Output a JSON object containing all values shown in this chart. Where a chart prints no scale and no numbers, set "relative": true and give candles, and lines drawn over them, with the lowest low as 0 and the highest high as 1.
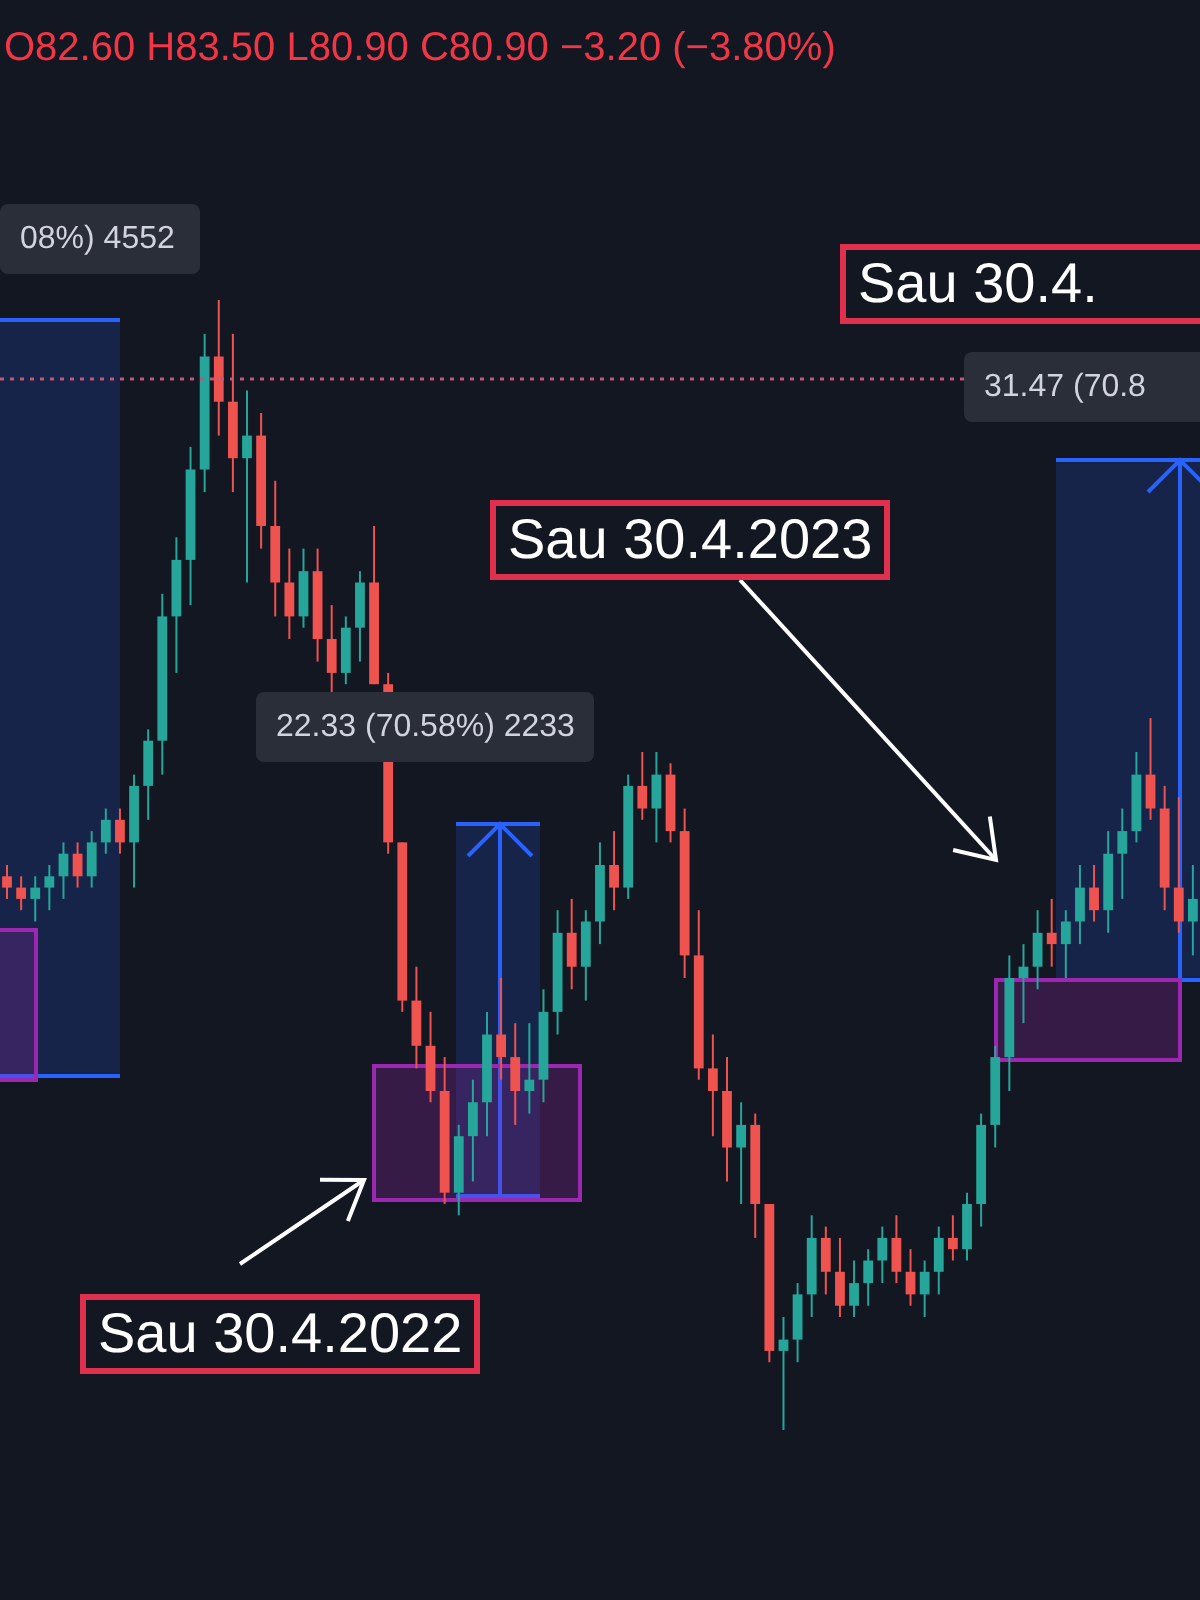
{
  "chart_data": {
    "type": "candlestick",
    "relative": true,
    "categories": [
      null,
      null,
      null,
      null,
      null,
      null,
      null,
      null,
      null,
      null,
      null,
      null,
      null,
      null,
      null,
      null,
      null,
      null,
      null,
      null,
      null,
      null,
      null,
      null,
      null,
      null,
      null,
      null,
      null,
      null,
      null,
      null,
      null,
      null,
      null,
      null,
      null,
      null,
      null,
      null,
      null,
      null,
      null,
      null,
      null,
      null,
      null,
      null,
      null,
      null,
      null,
      null,
      null,
      null,
      null,
      null,
      null,
      null,
      null,
      null,
      null,
      null,
      null,
      null,
      null,
      null,
      null,
      null,
      null,
      null,
      null,
      null,
      null,
      null,
      null,
      null,
      null,
      null,
      null,
      null,
      null,
      null,
      null,
      null,
      null
    ],
    "ohlc": [
      [
        0.49,
        0.5,
        0.47,
        0.48
      ],
      [
        0.48,
        0.49,
        0.46,
        0.47
      ],
      [
        0.47,
        0.49,
        0.45,
        0.48
      ],
      [
        0.48,
        0.5,
        0.46,
        0.49
      ],
      [
        0.49,
        0.52,
        0.47,
        0.51
      ],
      [
        0.51,
        0.52,
        0.48,
        0.49
      ],
      [
        0.49,
        0.53,
        0.48,
        0.52
      ],
      [
        0.52,
        0.55,
        0.51,
        0.54
      ],
      [
        0.54,
        0.55,
        0.51,
        0.52
      ],
      [
        0.52,
        0.58,
        0.48,
        0.57
      ],
      [
        0.57,
        0.62,
        0.54,
        0.61
      ],
      [
        0.61,
        0.74,
        0.58,
        0.72
      ],
      [
        0.72,
        0.79,
        0.67,
        0.77
      ],
      [
        0.77,
        0.87,
        0.73,
        0.85
      ],
      [
        0.85,
        0.97,
        0.83,
        0.95
      ],
      [
        0.95,
        1.0,
        0.88,
        0.91
      ],
      [
        0.91,
        0.97,
        0.83,
        0.86
      ],
      [
        0.86,
        0.92,
        0.75,
        0.88
      ],
      [
        0.88,
        0.9,
        0.78,
        0.8
      ],
      [
        0.8,
        0.84,
        0.72,
        0.75
      ],
      [
        0.75,
        0.78,
        0.7,
        0.72
      ],
      [
        0.72,
        0.78,
        0.71,
        0.76
      ],
      [
        0.76,
        0.78,
        0.68,
        0.7
      ],
      [
        0.7,
        0.73,
        0.65,
        0.67
      ],
      [
        0.67,
        0.72,
        0.66,
        0.71
      ],
      [
        0.71,
        0.76,
        0.68,
        0.75
      ],
      [
        0.75,
        0.8,
        0.66,
        0.66
      ],
      [
        0.66,
        0.67,
        0.51,
        0.52
      ],
      [
        0.52,
        0.52,
        0.37,
        0.38
      ],
      [
        0.38,
        0.41,
        0.32,
        0.34
      ],
      [
        0.34,
        0.37,
        0.29,
        0.3
      ],
      [
        0.3,
        0.33,
        0.2,
        0.21
      ],
      [
        0.21,
        0.27,
        0.19,
        0.26
      ],
      [
        0.26,
        0.31,
        0.22,
        0.29
      ],
      [
        0.29,
        0.37,
        0.26,
        0.35
      ],
      [
        0.35,
        0.4,
        0.31,
        0.33
      ],
      [
        0.33,
        0.36,
        0.27,
        0.3
      ],
      [
        0.3,
        0.36,
        0.28,
        0.31
      ],
      [
        0.31,
        0.39,
        0.29,
        0.37
      ],
      [
        0.37,
        0.46,
        0.35,
        0.44
      ],
      [
        0.44,
        0.47,
        0.39,
        0.41
      ],
      [
        0.41,
        0.46,
        0.38,
        0.45
      ],
      [
        0.45,
        0.52,
        0.43,
        0.5
      ],
      [
        0.5,
        0.53,
        0.46,
        0.48
      ],
      [
        0.48,
        0.58,
        0.47,
        0.57
      ],
      [
        0.57,
        0.6,
        0.54,
        0.55
      ],
      [
        0.55,
        0.6,
        0.52,
        0.58
      ],
      [
        0.58,
        0.59,
        0.52,
        0.53
      ],
      [
        0.53,
        0.55,
        0.4,
        0.42
      ],
      [
        0.42,
        0.46,
        0.31,
        0.32
      ],
      [
        0.32,
        0.35,
        0.26,
        0.3
      ],
      [
        0.3,
        0.33,
        0.22,
        0.25
      ],
      [
        0.25,
        0.29,
        0.2,
        0.27
      ],
      [
        0.27,
        0.28,
        0.17,
        0.2
      ],
      [
        0.2,
        0.2,
        0.06,
        0.07
      ],
      [
        0.07,
        0.1,
        0.0,
        0.08
      ],
      [
        0.08,
        0.13,
        0.06,
        0.12
      ],
      [
        0.12,
        0.19,
        0.1,
        0.17
      ],
      [
        0.17,
        0.18,
        0.12,
        0.14
      ],
      [
        0.14,
        0.17,
        0.1,
        0.11
      ],
      [
        0.11,
        0.15,
        0.1,
        0.13
      ],
      [
        0.13,
        0.16,
        0.11,
        0.15
      ],
      [
        0.15,
        0.18,
        0.13,
        0.17
      ],
      [
        0.17,
        0.19,
        0.13,
        0.14
      ],
      [
        0.14,
        0.16,
        0.11,
        0.12
      ],
      [
        0.12,
        0.15,
        0.1,
        0.14
      ],
      [
        0.14,
        0.18,
        0.12,
        0.17
      ],
      [
        0.17,
        0.19,
        0.15,
        0.16
      ],
      [
        0.16,
        0.21,
        0.15,
        0.2
      ],
      [
        0.2,
        0.28,
        0.18,
        0.27
      ],
      [
        0.27,
        0.34,
        0.25,
        0.33
      ],
      [
        0.33,
        0.42,
        0.3,
        0.4
      ],
      [
        0.4,
        0.43,
        0.36,
        0.41
      ],
      [
        0.41,
        0.46,
        0.39,
        0.44
      ],
      [
        0.44,
        0.47,
        0.41,
        0.43
      ],
      [
        0.43,
        0.46,
        0.4,
        0.45
      ],
      [
        0.45,
        0.5,
        0.43,
        0.48
      ],
      [
        0.48,
        0.5,
        0.45,
        0.46
      ],
      [
        0.46,
        0.53,
        0.44,
        0.51
      ],
      [
        0.51,
        0.55,
        0.47,
        0.53
      ],
      [
        0.53,
        0.6,
        0.52,
        0.58
      ],
      [
        0.58,
        0.63,
        0.54,
        0.55
      ],
      [
        0.55,
        0.57,
        0.46,
        0.48
      ],
      [
        0.48,
        0.56,
        0.44,
        0.45
      ],
      [
        0.45,
        0.5,
        0.42,
        0.47
      ]
    ],
    "ref_lines": [
      {
        "axis": "y",
        "value": 0.93,
        "color": "#c2557a",
        "line_style": "dotted"
      }
    ],
    "annotations": [
      "O82.60 H83.50 L80.90 C80.90 −3.20 (−3.80%)",
      "08%) 4552",
      "22.33 (70.58%) 2233",
      "31.47 (70.8",
      "Sau 30.4.",
      "Sau 30.4.2023",
      "Sau 30.4.2022"
    ]
  }
}
